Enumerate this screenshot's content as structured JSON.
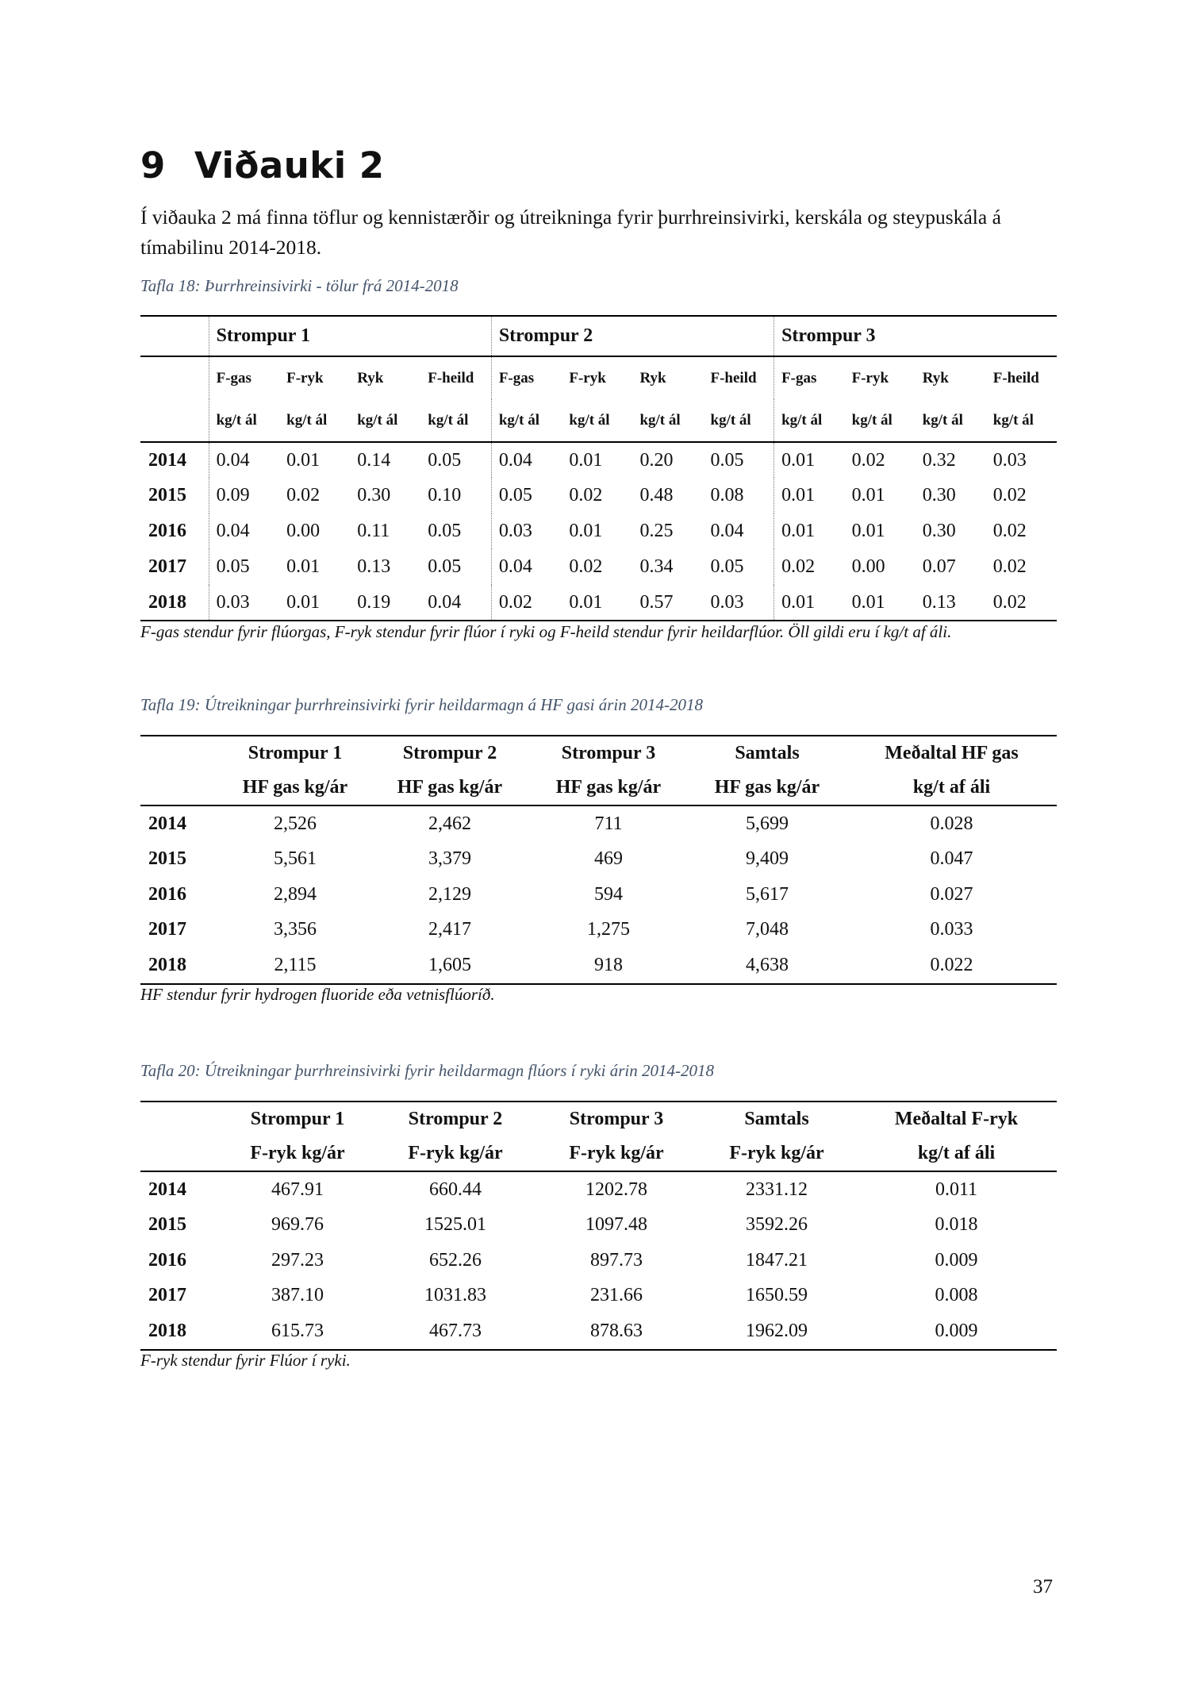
{
  "heading": {
    "number": "9",
    "title": "Viðauki 2"
  },
  "intro": "Í viðauka 2 má finna töflur og kennistærðir og útreikninga fyrir þurrhreinsivirki, kerskála og steypuskála á tímabilinu 2014-2018.",
  "table18": {
    "caption": "Tafla 18: Þurrhreinsivirki - tölur frá 2014-2018",
    "groups": [
      "Strompur 1",
      "Strompur 2",
      "Strompur 3"
    ],
    "subheaders": [
      "F-gas",
      "F-ryk",
      "Ryk",
      "F-heild"
    ],
    "unit": "kg/t ál",
    "rows": [
      {
        "year": "2014",
        "values": [
          "0.04",
          "0.01",
          "0.14",
          "0.05",
          "0.04",
          "0.01",
          "0.20",
          "0.05",
          "0.01",
          "0.02",
          "0.32",
          "0.03"
        ]
      },
      {
        "year": "2015",
        "values": [
          "0.09",
          "0.02",
          "0.30",
          "0.10",
          "0.05",
          "0.02",
          "0.48",
          "0.08",
          "0.01",
          "0.01",
          "0.30",
          "0.02"
        ]
      },
      {
        "year": "2016",
        "values": [
          "0.04",
          "0.00",
          "0.11",
          "0.05",
          "0.03",
          "0.01",
          "0.25",
          "0.04",
          "0.01",
          "0.01",
          "0.30",
          "0.02"
        ]
      },
      {
        "year": "2017",
        "values": [
          "0.05",
          "0.01",
          "0.13",
          "0.05",
          "0.04",
          "0.02",
          "0.34",
          "0.05",
          "0.02",
          "0.00",
          "0.07",
          "0.02"
        ]
      },
      {
        "year": "2018",
        "values": [
          "0.03",
          "0.01",
          "0.19",
          "0.04",
          "0.02",
          "0.01",
          "0.57",
          "0.03",
          "0.01",
          "0.01",
          "0.13",
          "0.02"
        ]
      }
    ],
    "note": "F-gas stendur fyrir flúorgas, F-ryk stendur fyrir flúor í ryki og F-heild stendur fyrir heildarflúor. Öll gildi eru í kg/t af áli."
  },
  "table19": {
    "caption": "Tafla 19: Útreikningar þurrhreinsivirki fyrir heildarmagn á HF gasi árin 2014-2018",
    "headers1": [
      "Strompur 1",
      "Strompur 2",
      "Strompur 3",
      "Samtals",
      "Meðaltal HF gas"
    ],
    "headers2": [
      "HF gas kg/ár",
      "HF gas kg/ár",
      "HF gas kg/ár",
      "HF gas kg/ár",
      "kg/t af áli"
    ],
    "rows": [
      {
        "year": "2014",
        "values": [
          "2,526",
          "2,462",
          "711",
          "5,699",
          "0.028"
        ]
      },
      {
        "year": "2015",
        "values": [
          "5,561",
          "3,379",
          "469",
          "9,409",
          "0.047"
        ]
      },
      {
        "year": "2016",
        "values": [
          "2,894",
          "2,129",
          "594",
          "5,617",
          "0.027"
        ]
      },
      {
        "year": "2017",
        "values": [
          "3,356",
          "2,417",
          "1,275",
          "7,048",
          "0.033"
        ]
      },
      {
        "year": "2018",
        "values": [
          "2,115",
          "1,605",
          "918",
          "4,638",
          "0.022"
        ]
      }
    ],
    "note": "HF stendur fyrir hydrogen fluoride eða vetnisflúoríð."
  },
  "table20": {
    "caption": "Tafla 20: Útreikningar þurrhreinsivirki fyrir heildarmagn flúors í ryki árin 2014-2018",
    "headers1": [
      "Strompur 1",
      "Strompur 2",
      "Strompur 3",
      "Samtals",
      "Meðaltal F-ryk"
    ],
    "headers2": [
      "F-ryk kg/ár",
      "F-ryk kg/ár",
      "F-ryk kg/ár",
      "F-ryk kg/ár",
      "kg/t af áli"
    ],
    "rows": [
      {
        "year": "2014",
        "values": [
          "467.91",
          "660.44",
          "1202.78",
          "2331.12",
          "0.011"
        ]
      },
      {
        "year": "2015",
        "values": [
          "969.76",
          "1525.01",
          "1097.48",
          "3592.26",
          "0.018"
        ]
      },
      {
        "year": "2016",
        "values": [
          "297.23",
          "652.26",
          "897.73",
          "1847.21",
          "0.009"
        ]
      },
      {
        "year": "2017",
        "values": [
          "387.10",
          "1031.83",
          "231.66",
          "1650.59",
          "0.008"
        ]
      },
      {
        "year": "2018",
        "values": [
          "615.73",
          "467.73",
          "878.63",
          "1962.09",
          "0.009"
        ]
      }
    ],
    "note": "F-ryk stendur fyrir Flúor í ryki."
  },
  "page_number": "37"
}
